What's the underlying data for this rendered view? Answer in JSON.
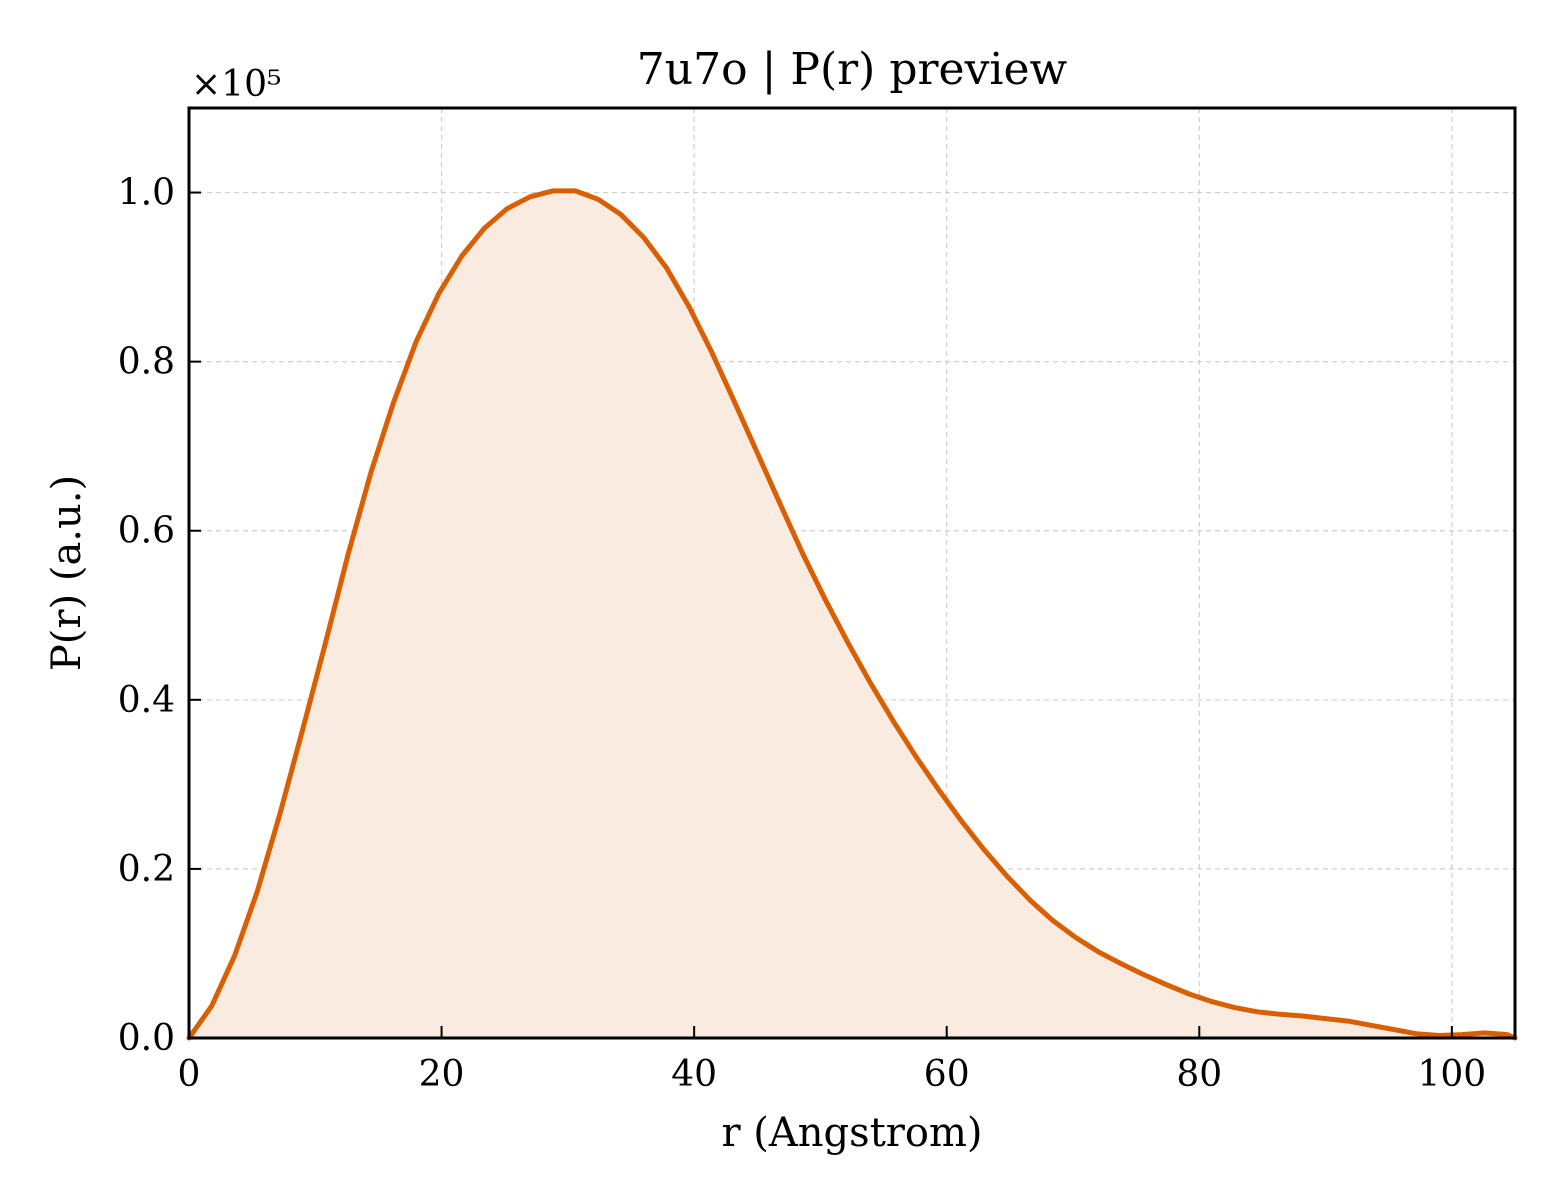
{
  "chart_data": {
    "type": "area",
    "title": "7u7o | P(r) preview",
    "xlabel": "r (Angstrom)",
    "ylabel": "P(r) (a.u.)",
    "y_scale_label": "×10⁵",
    "xlim": [
      0,
      105
    ],
    "ylim": [
      0,
      1.1
    ],
    "xticks": [
      0,
      20,
      40,
      60,
      80,
      100
    ],
    "yticks": [
      0.0,
      0.2,
      0.4,
      0.6,
      0.8,
      1.0
    ],
    "grid": true,
    "line_color": "#d95f02",
    "fill_color": "#f9ebe0",
    "series": [
      {
        "x": [
          0,
          1.8,
          3.6,
          5.4,
          7.2,
          9.0,
          10.8,
          12.6,
          14.4,
          16.2,
          18.0,
          19.8,
          21.6,
          23.4,
          25.2,
          27.0,
          28.8,
          30.6,
          32.4,
          34.2,
          36.0,
          37.8,
          39.6,
          41.4,
          43.2,
          45.0,
          46.8,
          48.6,
          50.4,
          52.2,
          54.0,
          55.8,
          57.6,
          59.4,
          61.2,
          63.0,
          64.8,
          66.6,
          68.4,
          70.2,
          72.0,
          73.8,
          75.6,
          77.4,
          79.2,
          81.0,
          82.8,
          84.6,
          86.4,
          88.2,
          90.0,
          91.8,
          93.6,
          95.4,
          97.2,
          99.0,
          100.8,
          102.6,
          104.4,
          105
        ],
        "y": [
          0.0,
          0.038,
          0.097,
          0.173,
          0.265,
          0.365,
          0.467,
          0.572,
          0.669,
          0.752,
          0.824,
          0.881,
          0.925,
          0.958,
          0.981,
          0.995,
          1.002,
          1.002,
          0.992,
          0.974,
          0.947,
          0.911,
          0.865,
          0.811,
          0.752,
          0.692,
          0.632,
          0.573,
          0.518,
          0.467,
          0.419,
          0.374,
          0.332,
          0.293,
          0.256,
          0.222,
          0.191,
          0.163,
          0.139,
          0.119,
          0.102,
          0.088,
          0.075,
          0.063,
          0.052,
          0.043,
          0.036,
          0.031,
          0.028,
          0.026,
          0.023,
          0.02,
          0.015,
          0.01,
          0.005,
          0.003,
          0.004,
          0.006,
          0.004,
          0.0
        ]
      }
    ]
  }
}
